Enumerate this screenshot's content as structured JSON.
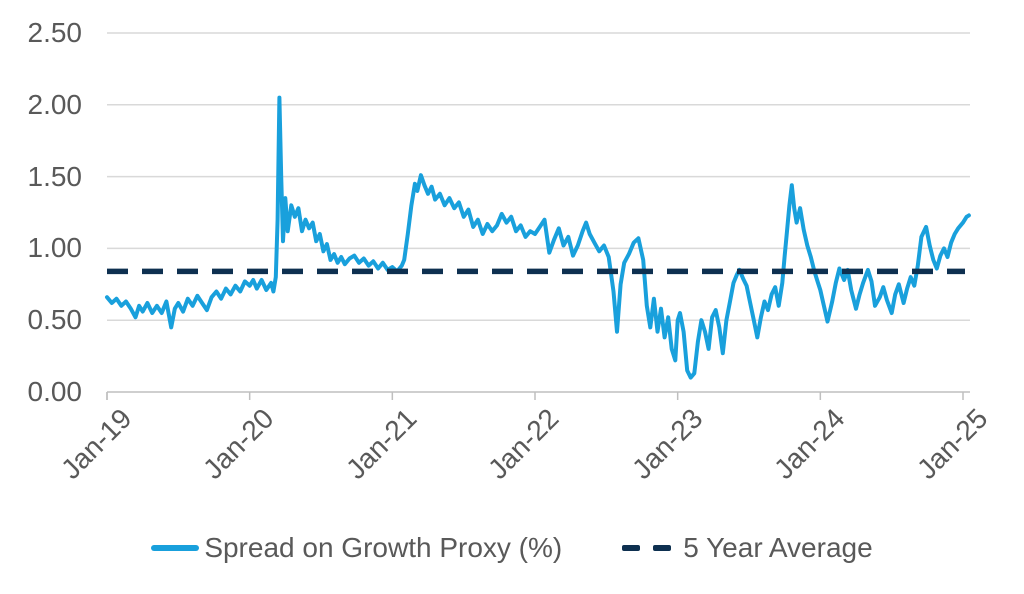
{
  "chart_data": {
    "type": "line",
    "title": "",
    "xlabel": "",
    "ylabel": "",
    "grid": true,
    "legend_position": "bottom",
    "ylim": [
      0,
      2.5
    ],
    "ytick_labels": [
      "2.50",
      "2.00",
      "1.50",
      "1.00",
      "0.50",
      "0.00"
    ],
    "ytick_values": [
      2.5,
      2.0,
      1.5,
      1.0,
      0.5,
      0.0
    ],
    "xtick_labels": [
      "Jan-19",
      "Jan-20",
      "Jan-21",
      "Jan-22",
      "Jan-23",
      "Jan-24",
      "Jan-25"
    ],
    "xtick_months": [
      0,
      12,
      24,
      36,
      48,
      60,
      72
    ],
    "x_unit": "months since Jan-2019",
    "xlim_months": [
      0,
      72.5
    ],
    "colors": {
      "spread_line": "#19A0DC",
      "average_line": "#0E3050",
      "gridline": "#D9D9D9",
      "axis": "#BFBFBF",
      "tick_text": "#595959",
      "background": "#FFFFFF"
    },
    "series": [
      {
        "name": "Spread on Growth Proxy (%)",
        "style": "solid",
        "color": "#19A0DC",
        "points": [
          [
            0,
            0.66
          ],
          [
            0.4,
            0.62
          ],
          [
            0.8,
            0.65
          ],
          [
            1.2,
            0.6
          ],
          [
            1.6,
            0.63
          ],
          [
            2,
            0.58
          ],
          [
            2.4,
            0.52
          ],
          [
            2.7,
            0.6
          ],
          [
            3,
            0.56
          ],
          [
            3.4,
            0.62
          ],
          [
            3.8,
            0.55
          ],
          [
            4.2,
            0.6
          ],
          [
            4.6,
            0.55
          ],
          [
            5,
            0.63
          ],
          [
            5.4,
            0.45
          ],
          [
            5.7,
            0.58
          ],
          [
            6,
            0.62
          ],
          [
            6.4,
            0.56
          ],
          [
            6.8,
            0.65
          ],
          [
            7.2,
            0.6
          ],
          [
            7.6,
            0.67
          ],
          [
            8,
            0.62
          ],
          [
            8.4,
            0.57
          ],
          [
            8.8,
            0.66
          ],
          [
            9.2,
            0.7
          ],
          [
            9.6,
            0.65
          ],
          [
            10,
            0.72
          ],
          [
            10.4,
            0.68
          ],
          [
            10.8,
            0.74
          ],
          [
            11.2,
            0.7
          ],
          [
            11.6,
            0.77
          ],
          [
            12,
            0.74
          ],
          [
            12.3,
            0.78
          ],
          [
            12.6,
            0.72
          ],
          [
            13,
            0.78
          ],
          [
            13.4,
            0.71
          ],
          [
            13.8,
            0.76
          ],
          [
            14,
            0.7
          ],
          [
            14.2,
            0.8
          ],
          [
            14.35,
            1.2
          ],
          [
            14.5,
            2.05
          ],
          [
            14.65,
            1.5
          ],
          [
            14.8,
            1.05
          ],
          [
            15,
            1.35
          ],
          [
            15.2,
            1.12
          ],
          [
            15.5,
            1.3
          ],
          [
            15.8,
            1.22
          ],
          [
            16.1,
            1.28
          ],
          [
            16.4,
            1.12
          ],
          [
            16.7,
            1.2
          ],
          [
            17,
            1.14
          ],
          [
            17.3,
            1.18
          ],
          [
            17.6,
            1.05
          ],
          [
            17.9,
            1.1
          ],
          [
            18.2,
            0.98
          ],
          [
            18.5,
            1.03
          ],
          [
            18.8,
            0.92
          ],
          [
            19.1,
            0.96
          ],
          [
            19.4,
            0.9
          ],
          [
            19.7,
            0.94
          ],
          [
            20,
            0.89
          ],
          [
            20.4,
            0.93
          ],
          [
            20.8,
            0.95
          ],
          [
            21.2,
            0.9
          ],
          [
            21.6,
            0.93
          ],
          [
            22,
            0.88
          ],
          [
            22.4,
            0.91
          ],
          [
            22.8,
            0.86
          ],
          [
            23.2,
            0.9
          ],
          [
            23.6,
            0.85
          ],
          [
            24,
            0.87
          ],
          [
            24.4,
            0.84
          ],
          [
            24.8,
            0.88
          ],
          [
            25,
            0.92
          ],
          [
            25.3,
            1.1
          ],
          [
            25.6,
            1.3
          ],
          [
            25.9,
            1.45
          ],
          [
            26.1,
            1.4
          ],
          [
            26.4,
            1.51
          ],
          [
            26.7,
            1.44
          ],
          [
            27,
            1.38
          ],
          [
            27.3,
            1.43
          ],
          [
            27.6,
            1.34
          ],
          [
            28,
            1.38
          ],
          [
            28.4,
            1.3
          ],
          [
            28.8,
            1.35
          ],
          [
            29.2,
            1.28
          ],
          [
            29.6,
            1.32
          ],
          [
            30,
            1.22
          ],
          [
            30.4,
            1.27
          ],
          [
            30.8,
            1.15
          ],
          [
            31.2,
            1.2
          ],
          [
            31.6,
            1.1
          ],
          [
            32,
            1.17
          ],
          [
            32.4,
            1.12
          ],
          [
            32.8,
            1.16
          ],
          [
            33.2,
            1.24
          ],
          [
            33.6,
            1.18
          ],
          [
            34,
            1.22
          ],
          [
            34.4,
            1.12
          ],
          [
            34.8,
            1.16
          ],
          [
            35.2,
            1.08
          ],
          [
            35.6,
            1.12
          ],
          [
            36,
            1.1
          ],
          [
            36.4,
            1.15
          ],
          [
            36.8,
            1.2
          ],
          [
            37.2,
            0.97
          ],
          [
            37.6,
            1.06
          ],
          [
            38,
            1.14
          ],
          [
            38.4,
            1.02
          ],
          [
            38.8,
            1.08
          ],
          [
            39.2,
            0.95
          ],
          [
            39.6,
            1.02
          ],
          [
            40,
            1.12
          ],
          [
            40.3,
            1.18
          ],
          [
            40.6,
            1.1
          ],
          [
            41,
            1.04
          ],
          [
            41.4,
            0.98
          ],
          [
            41.8,
            1.02
          ],
          [
            42.2,
            0.94
          ],
          [
            42.6,
            0.7
          ],
          [
            42.9,
            0.42
          ],
          [
            43.2,
            0.75
          ],
          [
            43.5,
            0.9
          ],
          [
            43.9,
            0.96
          ],
          [
            44.3,
            1.04
          ],
          [
            44.7,
            1.07
          ],
          [
            45.1,
            0.92
          ],
          [
            45.4,
            0.6
          ],
          [
            45.7,
            0.45
          ],
          [
            46,
            0.65
          ],
          [
            46.3,
            0.42
          ],
          [
            46.6,
            0.58
          ],
          [
            46.9,
            0.38
          ],
          [
            47.2,
            0.52
          ],
          [
            47.5,
            0.3
          ],
          [
            47.8,
            0.22
          ],
          [
            48,
            0.5
          ],
          [
            48.2,
            0.55
          ],
          [
            48.5,
            0.42
          ],
          [
            48.8,
            0.15
          ],
          [
            49.1,
            0.1
          ],
          [
            49.4,
            0.13
          ],
          [
            49.7,
            0.35
          ],
          [
            50,
            0.5
          ],
          [
            50.3,
            0.42
          ],
          [
            50.6,
            0.3
          ],
          [
            50.9,
            0.52
          ],
          [
            51.2,
            0.57
          ],
          [
            51.5,
            0.45
          ],
          [
            51.8,
            0.27
          ],
          [
            52.1,
            0.5
          ],
          [
            52.4,
            0.63
          ],
          [
            52.7,
            0.76
          ],
          [
            53,
            0.82
          ],
          [
            53.2,
            0.85
          ],
          [
            53.5,
            0.79
          ],
          [
            53.8,
            0.74
          ],
          [
            54.1,
            0.62
          ],
          [
            54.4,
            0.5
          ],
          [
            54.7,
            0.38
          ],
          [
            55,
            0.52
          ],
          [
            55.3,
            0.63
          ],
          [
            55.6,
            0.57
          ],
          [
            55.9,
            0.68
          ],
          [
            56.2,
            0.73
          ],
          [
            56.5,
            0.6
          ],
          [
            56.8,
            0.76
          ],
          [
            57,
            0.95
          ],
          [
            57.2,
            1.12
          ],
          [
            57.4,
            1.3
          ],
          [
            57.6,
            1.44
          ],
          [
            57.8,
            1.28
          ],
          [
            58,
            1.18
          ],
          [
            58.3,
            1.28
          ],
          [
            58.6,
            1.13
          ],
          [
            58.9,
            1.02
          ],
          [
            59.2,
            0.94
          ],
          [
            59.5,
            0.84
          ],
          [
            59.8,
            0.76
          ],
          [
            60,
            0.71
          ],
          [
            60.3,
            0.6
          ],
          [
            60.6,
            0.49
          ],
          [
            61,
            0.63
          ],
          [
            61.3,
            0.76
          ],
          [
            61.6,
            0.86
          ],
          [
            62,
            0.78
          ],
          [
            62.3,
            0.85
          ],
          [
            62.6,
            0.71
          ],
          [
            63,
            0.58
          ],
          [
            63.3,
            0.68
          ],
          [
            63.6,
            0.76
          ],
          [
            64,
            0.85
          ],
          [
            64.3,
            0.77
          ],
          [
            64.6,
            0.6
          ],
          [
            65,
            0.66
          ],
          [
            65.3,
            0.73
          ],
          [
            65.6,
            0.64
          ],
          [
            66,
            0.55
          ],
          [
            66.3,
            0.68
          ],
          [
            66.6,
            0.75
          ],
          [
            67,
            0.62
          ],
          [
            67.3,
            0.72
          ],
          [
            67.6,
            0.8
          ],
          [
            67.9,
            0.74
          ],
          [
            68.2,
            0.88
          ],
          [
            68.5,
            1.08
          ],
          [
            68.9,
            1.15
          ],
          [
            69.2,
            1.02
          ],
          [
            69.5,
            0.92
          ],
          [
            69.8,
            0.86
          ],
          [
            70.1,
            0.95
          ],
          [
            70.4,
            1.0
          ],
          [
            70.7,
            0.94
          ],
          [
            71,
            1.04
          ],
          [
            71.3,
            1.1
          ],
          [
            71.6,
            1.14
          ],
          [
            72,
            1.18
          ],
          [
            72.3,
            1.22
          ],
          [
            72.5,
            1.23
          ]
        ]
      },
      {
        "name": "5 Year Average",
        "style": "dashed",
        "color": "#0E3050",
        "value": 0.84
      }
    ]
  }
}
